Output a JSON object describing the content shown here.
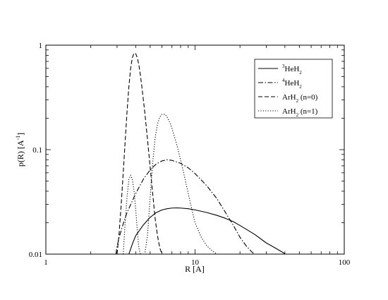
{
  "chart_data": {
    "type": "line",
    "xscale": "log",
    "yscale": "log",
    "xlim": [
      1,
      100
    ],
    "ylim": [
      0.01,
      1
    ],
    "xlabel": "R [A]",
    "ylabel": "p(R) [A",
    "ylabel_superscript": "-1",
    "ylabel_suffix": "]",
    "xticks": [
      {
        "value": 1,
        "label": "1"
      },
      {
        "value": 10,
        "label": "10"
      },
      {
        "value": 100,
        "label": "100"
      }
    ],
    "yticks": [
      {
        "value": 0.01,
        "label": "0.01"
      },
      {
        "value": 0.1,
        "label": "0.1"
      },
      {
        "value": 1,
        "label": "1"
      }
    ],
    "grid": false,
    "legend_position": "top-right",
    "series": [
      {
        "name": "3HeH2",
        "legend": {
          "sup": "3",
          "base": "HeH",
          "sub": "2",
          "suffix": ""
        },
        "dash": "solid",
        "x": [
          3.6,
          3.8,
          4.0,
          4.5,
          5.0,
          5.5,
          6.0,
          6.5,
          7.0,
          7.5,
          8.0,
          9.0,
          10.0,
          12.0,
          14.0,
          16.0,
          18.0,
          20.0,
          25.0,
          30.0,
          35.0,
          40.0
        ],
        "y": [
          0.01,
          0.0125,
          0.015,
          0.019,
          0.0225,
          0.025,
          0.0265,
          0.0272,
          0.0276,
          0.0277,
          0.0276,
          0.0272,
          0.0265,
          0.025,
          0.0235,
          0.022,
          0.0205,
          0.0188,
          0.0155,
          0.0128,
          0.0113,
          0.0101
        ]
      },
      {
        "name": "4HeH2",
        "legend": {
          "sup": "4",
          "base": "HeH",
          "sub": "2",
          "suffix": ""
        },
        "dash": "dashdot",
        "x": [
          2.95,
          3.0,
          3.1,
          3.3,
          3.5,
          4.0,
          4.5,
          5.0,
          5.5,
          6.0,
          6.5,
          7.0,
          8.0,
          9.0,
          10.0,
          12.0,
          14.0,
          16.0,
          18.0,
          20.0,
          22.0,
          24.0,
          25.0
        ],
        "y": [
          0.01,
          0.0118,
          0.0145,
          0.0195,
          0.025,
          0.038,
          0.052,
          0.064,
          0.073,
          0.078,
          0.08,
          0.079,
          0.074,
          0.067,
          0.059,
          0.045,
          0.034,
          0.025,
          0.019,
          0.0145,
          0.012,
          0.0105,
          0.01
        ]
      },
      {
        "name": "ArH2 (n=0)",
        "legend": {
          "sup": "",
          "base": "ArH",
          "sub": "2",
          "suffix": " (n=0)"
        },
        "dash": "dashed",
        "x": [
          3.0,
          3.1,
          3.2,
          3.3,
          3.4,
          3.5,
          3.6,
          3.7,
          3.8,
          3.9,
          4.0,
          4.1,
          4.2,
          4.3,
          4.4,
          4.6,
          4.8,
          5.0,
          5.2,
          5.4,
          5.6,
          5.8,
          6.0
        ],
        "y": [
          0.01,
          0.016,
          0.03,
          0.06,
          0.12,
          0.23,
          0.4,
          0.6,
          0.76,
          0.84,
          0.83,
          0.76,
          0.65,
          0.52,
          0.4,
          0.23,
          0.125,
          0.068,
          0.038,
          0.022,
          0.015,
          0.0115,
          0.01
        ]
      },
      {
        "name": "ArH2 (n=1)",
        "legend": {
          "sup": "",
          "base": "ArH",
          "sub": "2",
          "suffix": " (n=1)"
        },
        "dash": "dotted",
        "x": [
          3.3,
          3.4,
          3.5,
          3.6,
          3.7,
          3.8,
          3.9,
          4.0,
          4.1,
          4.2,
          4.3,
          4.4,
          4.5,
          4.6,
          4.8,
          5.0,
          5.2,
          5.4,
          5.6,
          5.8,
          6.0,
          6.3,
          6.5,
          6.8,
          7.0,
          7.5,
          8.0,
          8.5,
          9.0,
          9.5,
          10.0,
          11.0,
          12.0,
          13.0,
          14.0
        ],
        "y": [
          0.01,
          0.02,
          0.035,
          0.052,
          0.057,
          0.052,
          0.04,
          0.027,
          0.017,
          0.0115,
          0.01,
          0.01,
          0.01,
          0.01,
          0.015,
          0.035,
          0.075,
          0.13,
          0.175,
          0.205,
          0.218,
          0.218,
          0.205,
          0.18,
          0.16,
          0.115,
          0.08,
          0.055,
          0.038,
          0.027,
          0.02,
          0.0145,
          0.012,
          0.0108,
          0.01
        ]
      }
    ]
  }
}
